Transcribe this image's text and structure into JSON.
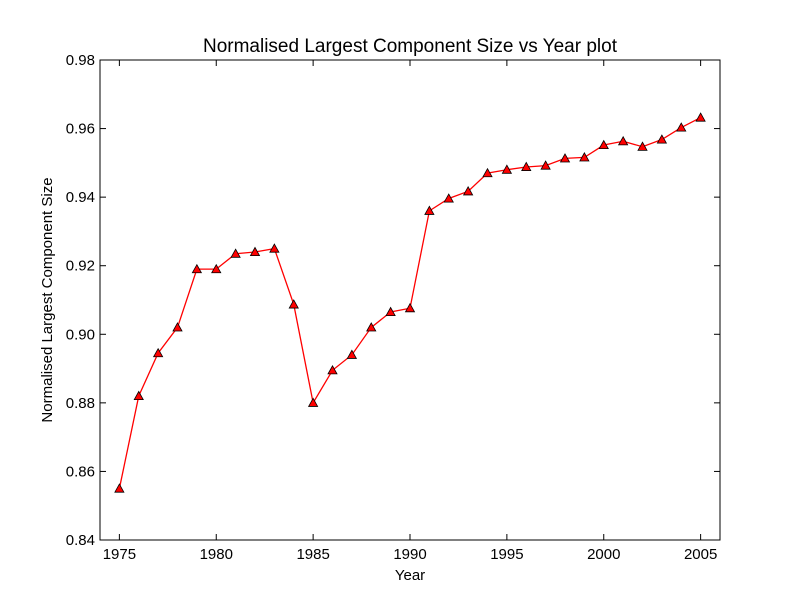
{
  "chart_data": {
    "type": "line",
    "title": "Normalised Largest Component Size vs Year plot",
    "xlabel": "Year",
    "ylabel": "Normalised Largest Component Size",
    "xlim": [
      1974,
      2006
    ],
    "ylim": [
      0.84,
      0.98
    ],
    "xticks": [
      "1975",
      "1980",
      "1985",
      "1990",
      "1995",
      "2000",
      "2005"
    ],
    "yticks": [
      "0.84",
      "0.86",
      "0.88",
      "0.90",
      "0.92",
      "0.94",
      "0.96",
      "0.98"
    ],
    "grid": false,
    "line_color": "#ff0000",
    "marker": "triangle",
    "marker_color": "#ff0000",
    "series": [
      {
        "x": [
          1975,
          1976,
          1977,
          1978,
          1979,
          1980,
          1981,
          1982,
          1983,
          1984,
          1985,
          1986,
          1987,
          1988,
          1989,
          1990,
          1991,
          1992,
          1993,
          1994,
          1995,
          1996,
          1997,
          1998,
          1999,
          2000,
          2001,
          2002,
          2003,
          2004,
          2005
        ],
        "y": [
          0.855,
          0.882,
          0.8945,
          0.902,
          0.919,
          0.919,
          0.9235,
          0.924,
          0.925,
          0.9087,
          0.88,
          0.8895,
          0.894,
          0.902,
          0.9065,
          0.9076,
          0.936,
          0.9396,
          0.9417,
          0.947,
          0.948,
          0.9488,
          0.9492,
          0.9513,
          0.9516,
          0.9552,
          0.9563,
          0.9547,
          0.9568,
          0.9603,
          0.9632
        ]
      }
    ]
  }
}
